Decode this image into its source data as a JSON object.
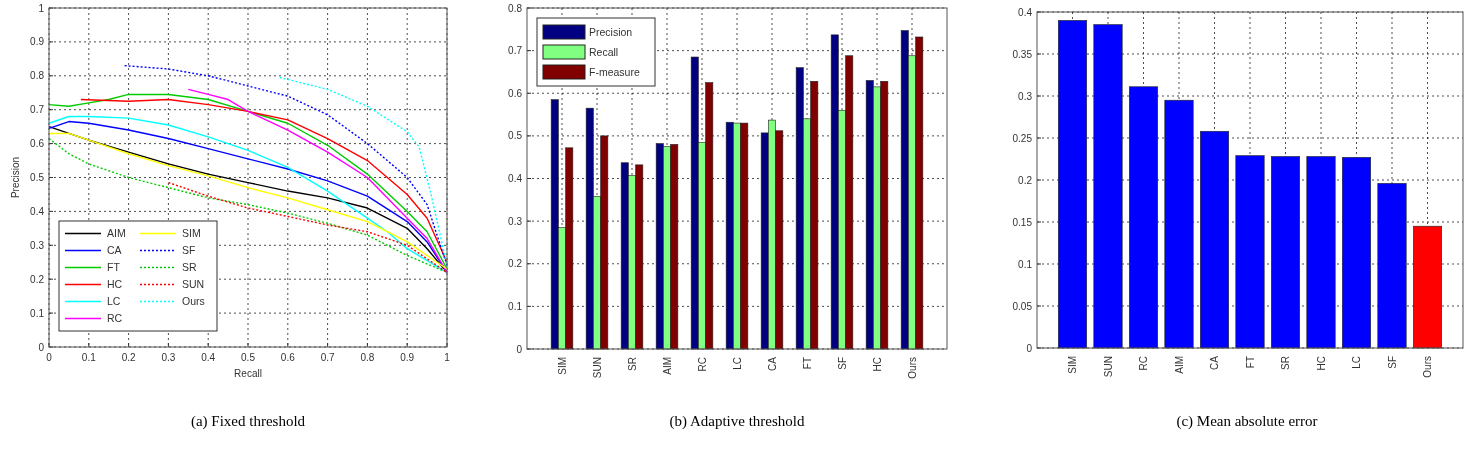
{
  "chart_data": [
    {
      "type": "line",
      "title": "(a)  Fixed threshold",
      "xlabel": "Recall",
      "ylabel": "Precision",
      "xlim": [
        0,
        1
      ],
      "ylim": [
        0,
        1
      ],
      "xticks": [
        0,
        0.1,
        0.2,
        0.3,
        0.4,
        0.5,
        0.6,
        0.7,
        0.8,
        0.9,
        1
      ],
      "yticks": [
        0,
        0.1,
        0.2,
        0.3,
        0.4,
        0.5,
        0.6,
        0.7,
        0.8,
        0.9,
        1
      ],
      "grid": true,
      "legend": "bottom left",
      "series": [
        {
          "name": "AIM",
          "color": "#000000",
          "line_style": "solid",
          "x": [
            0,
            0.1,
            0.2,
            0.3,
            0.4,
            0.5,
            0.6,
            0.7,
            0.8,
            0.9,
            0.95,
            1
          ],
          "values": [
            0.65,
            0.61,
            0.575,
            0.54,
            0.51,
            0.485,
            0.46,
            0.44,
            0.41,
            0.35,
            0.29,
            0.22
          ]
        },
        {
          "name": "CA",
          "color": "#0000ff",
          "line_style": "solid",
          "x": [
            0,
            0.05,
            0.1,
            0.2,
            0.3,
            0.4,
            0.5,
            0.6,
            0.7,
            0.8,
            0.9,
            0.95,
            1
          ],
          "values": [
            0.645,
            0.665,
            0.66,
            0.64,
            0.615,
            0.585,
            0.555,
            0.525,
            0.49,
            0.445,
            0.37,
            0.31,
            0.22
          ]
        },
        {
          "name": "FT",
          "color": "#00cc00",
          "line_style": "solid",
          "x": [
            0,
            0.05,
            0.1,
            0.15,
            0.2,
            0.3,
            0.4,
            0.5,
            0.6,
            0.7,
            0.8,
            0.9,
            0.95,
            1
          ],
          "values": [
            0.715,
            0.71,
            0.72,
            0.73,
            0.745,
            0.745,
            0.73,
            0.695,
            0.66,
            0.595,
            0.51,
            0.4,
            0.34,
            0.23
          ]
        },
        {
          "name": "HC",
          "color": "#ff0000",
          "line_style": "solid",
          "x": [
            0.08,
            0.2,
            0.3,
            0.4,
            0.5,
            0.6,
            0.7,
            0.8,
            0.9,
            0.95,
            1
          ],
          "values": [
            0.73,
            0.725,
            0.73,
            0.715,
            0.695,
            0.67,
            0.615,
            0.55,
            0.45,
            0.38,
            0.25
          ]
        },
        {
          "name": "LC",
          "color": "#00ffff",
          "line_style": "solid",
          "x": [
            0,
            0.05,
            0.1,
            0.2,
            0.3,
            0.4,
            0.5,
            0.6,
            0.7,
            0.8,
            0.85,
            0.9,
            1
          ],
          "values": [
            0.66,
            0.68,
            0.68,
            0.675,
            0.655,
            0.62,
            0.58,
            0.53,
            0.46,
            0.38,
            0.34,
            0.29,
            0.22
          ]
        },
        {
          "name": "RC",
          "color": "#ff00ff",
          "line_style": "solid",
          "x": [
            0.35,
            0.4,
            0.45,
            0.5,
            0.6,
            0.7,
            0.8,
            0.9,
            0.95,
            1
          ],
          "values": [
            0.76,
            0.745,
            0.73,
            0.695,
            0.64,
            0.575,
            0.5,
            0.38,
            0.32,
            0.22
          ]
        },
        {
          "name": "SIM",
          "color": "#ffff00",
          "line_style": "solid",
          "x": [
            0,
            0.05,
            0.1,
            0.2,
            0.3,
            0.4,
            0.5,
            0.6,
            0.7,
            0.8,
            0.85,
            0.9,
            1
          ],
          "values": [
            0.63,
            0.63,
            0.61,
            0.57,
            0.535,
            0.505,
            0.47,
            0.44,
            0.405,
            0.37,
            0.34,
            0.31,
            0.23
          ]
        },
        {
          "name": "SF",
          "color": "#0000ff",
          "line_style": "dotted",
          "x": [
            0.19,
            0.3,
            0.4,
            0.5,
            0.6,
            0.7,
            0.8,
            0.9,
            0.95,
            1
          ],
          "values": [
            0.83,
            0.82,
            0.8,
            0.77,
            0.74,
            0.685,
            0.6,
            0.5,
            0.42,
            0.24
          ]
        },
        {
          "name": "SR",
          "color": "#00cc00",
          "line_style": "dotted",
          "x": [
            0,
            0.05,
            0.1,
            0.2,
            0.3,
            0.4,
            0.5,
            0.6,
            0.7,
            0.8,
            0.9,
            1
          ],
          "values": [
            0.615,
            0.57,
            0.54,
            0.5,
            0.47,
            0.44,
            0.42,
            0.395,
            0.365,
            0.33,
            0.27,
            0.22
          ]
        },
        {
          "name": "SUN",
          "color": "#ff0000",
          "line_style": "dotted",
          "x": [
            0.3,
            0.4,
            0.5,
            0.6,
            0.7,
            0.8,
            0.9,
            1
          ],
          "values": [
            0.485,
            0.445,
            0.41,
            0.385,
            0.36,
            0.34,
            0.3,
            0.22
          ]
        },
        {
          "name": "Ours",
          "color": "#00ffff",
          "line_style": "dotted",
          "x": [
            0.58,
            0.7,
            0.8,
            0.9,
            0.93,
            0.96,
            1
          ],
          "values": [
            0.795,
            0.76,
            0.71,
            0.635,
            0.59,
            0.45,
            0.24
          ]
        }
      ]
    },
    {
      "type": "bar",
      "title": "(b)  Adaptive threshold",
      "categories": [
        "SIM",
        "SUN",
        "SR",
        "AIM",
        "RC",
        "LC",
        "CA",
        "FT",
        "SF",
        "HC",
        "Ours"
      ],
      "ylim": [
        0,
        0.8
      ],
      "yticks": [
        0,
        0.1,
        0.2,
        0.3,
        0.4,
        0.5,
        0.6,
        0.7,
        0.8
      ],
      "grid": true,
      "legend": "top left",
      "series": [
        {
          "name": "Precision",
          "color": "#000080",
          "values": [
            0.585,
            0.565,
            0.437,
            0.482,
            0.685,
            0.532,
            0.507,
            0.66,
            0.737,
            0.63,
            0.747
          ]
        },
        {
          "name": "Recall",
          "color": "#80ff80",
          "values": [
            0.285,
            0.358,
            0.407,
            0.475,
            0.485,
            0.53,
            0.537,
            0.54,
            0.56,
            0.615,
            0.688
          ]
        },
        {
          "name": "F-measure",
          "color": "#800000",
          "values": [
            0.472,
            0.5,
            0.432,
            0.48,
            0.625,
            0.53,
            0.512,
            0.628,
            0.688,
            0.628,
            0.732
          ]
        }
      ]
    },
    {
      "type": "bar",
      "title": "(c)  Mean absolute error",
      "categories": [
        "SIM",
        "SUN",
        "RC",
        "AIM",
        "CA",
        "FT",
        "SR",
        "HC",
        "LC",
        "SF",
        "Ours"
      ],
      "ylim": [
        0,
        0.4
      ],
      "yticks": [
        0,
        0.05,
        0.1,
        0.15,
        0.2,
        0.25,
        0.3,
        0.35,
        0.4
      ],
      "grid": true,
      "values": [
        0.39,
        0.385,
        0.311,
        0.295,
        0.258,
        0.229,
        0.228,
        0.228,
        0.227,
        0.196,
        0.145
      ],
      "colors": [
        "#0000ff",
        "#0000ff",
        "#0000ff",
        "#0000ff",
        "#0000ff",
        "#0000ff",
        "#0000ff",
        "#0000ff",
        "#0000ff",
        "#0000ff",
        "#ff0000"
      ]
    }
  ]
}
